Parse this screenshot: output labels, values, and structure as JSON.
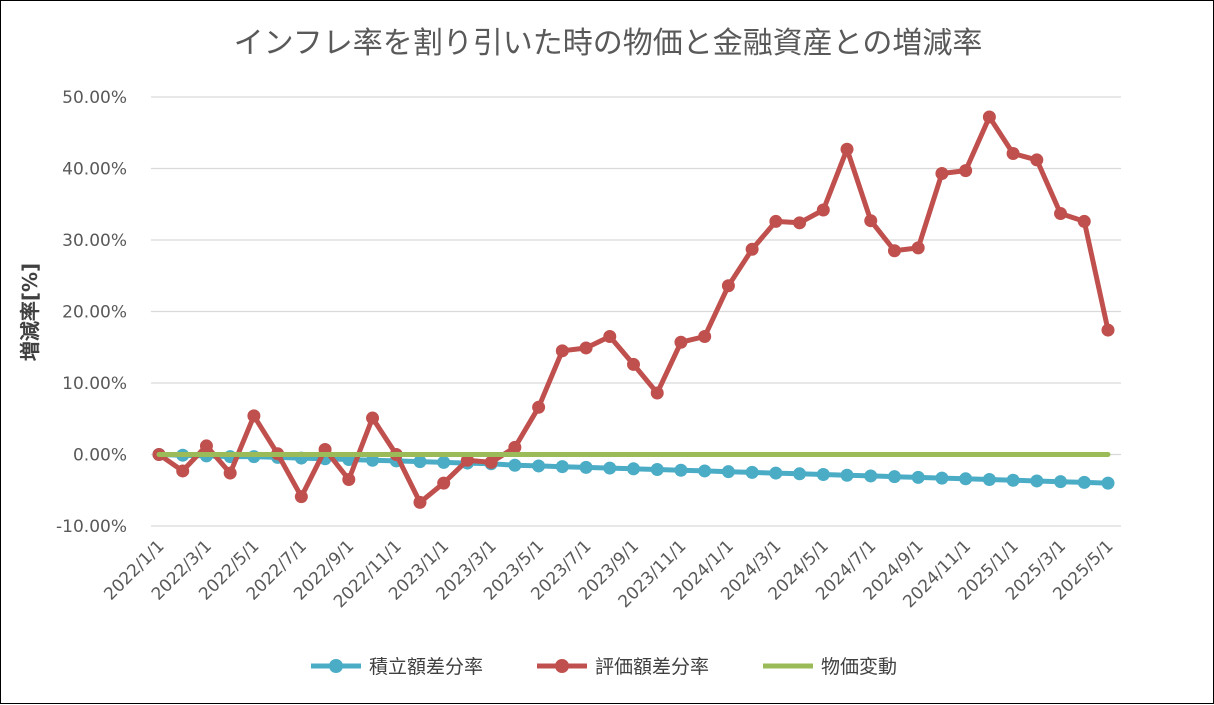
{
  "chart_data": {
    "type": "line",
    "title": "インフレ率を割り引いた時の物価と金融資産との増減率",
    "xlabel": "",
    "ylabel": "増減率[%]",
    "ylim": [
      -0.1,
      0.5
    ],
    "yticks": [
      "-10.00%",
      "0.00%",
      "10.00%",
      "20.00%",
      "30.00%",
      "40.00%",
      "50.00%"
    ],
    "ytick_values": [
      -0.1,
      0.0,
      0.1,
      0.2,
      0.3,
      0.4,
      0.5
    ],
    "grid": true,
    "legend_position": "bottom",
    "x": [
      "2022/1/1",
      "2022/2/1",
      "2022/3/1",
      "2022/4/1",
      "2022/5/1",
      "2022/6/1",
      "2022/7/1",
      "2022/8/1",
      "2022/9/1",
      "2022/10/1",
      "2022/11/1",
      "2022/12/1",
      "2023/1/1",
      "2023/2/1",
      "2023/3/1",
      "2023/4/1",
      "2023/5/1",
      "2023/6/1",
      "2023/7/1",
      "2023/8/1",
      "2023/9/1",
      "2023/10/1",
      "2023/11/1",
      "2023/12/1",
      "2024/1/1",
      "2024/2/1",
      "2024/3/1",
      "2024/4/1",
      "2024/5/1",
      "2024/6/1",
      "2024/7/1",
      "2024/8/1",
      "2024/9/1",
      "2024/10/1",
      "2024/11/1",
      "2024/12/1",
      "2025/1/1",
      "2025/2/1",
      "2025/3/1",
      "2025/4/1",
      "2025/5/1"
    ],
    "x_tick_labels": [
      "2022/1/1",
      "2022/3/1",
      "2022/5/1",
      "2022/7/1",
      "2022/9/1",
      "2022/11/1",
      "2023/1/1",
      "2023/3/1",
      "2023/5/1",
      "2023/7/1",
      "2023/9/1",
      "2023/11/1",
      "2024/1/1",
      "2024/3/1",
      "2024/5/1",
      "2024/7/1",
      "2024/9/1",
      "2024/11/1",
      "2025/1/1",
      "2025/3/1",
      "2025/5/1"
    ],
    "series": [
      {
        "name": "積立額差分率",
        "color": "#4bacc6",
        "markers": true,
        "values": [
          0.0,
          -0.001,
          -0.002,
          -0.003,
          -0.003,
          -0.004,
          -0.005,
          -0.006,
          -0.007,
          -0.008,
          -0.009,
          -0.01,
          -0.011,
          -0.012,
          -0.013,
          -0.015,
          -0.016,
          -0.017,
          -0.018,
          -0.019,
          -0.02,
          -0.021,
          -0.022,
          -0.023,
          -0.024,
          -0.025,
          -0.026,
          -0.027,
          -0.028,
          -0.029,
          -0.03,
          -0.031,
          -0.032,
          -0.033,
          -0.034,
          -0.035,
          -0.036,
          -0.037,
          -0.038,
          -0.039,
          -0.04
        ]
      },
      {
        "name": "評価額差分率",
        "color": "#c0504d",
        "markers": true,
        "values": [
          0.0,
          -0.023,
          0.012,
          -0.026,
          0.054,
          0.001,
          -0.059,
          0.007,
          -0.035,
          0.051,
          0.0,
          -0.067,
          -0.04,
          -0.008,
          -0.011,
          0.01,
          0.066,
          0.145,
          0.149,
          0.165,
          0.126,
          0.086,
          0.157,
          0.165,
          0.236,
          0.287,
          0.326,
          0.324,
          0.342,
          0.427,
          0.327,
          0.285,
          0.289,
          0.393,
          0.397,
          0.472,
          0.421,
          0.412,
          0.337,
          0.326,
          0.174
        ]
      },
      {
        "name": "物価変動",
        "color": "#9bbb59",
        "markers": false,
        "values": [
          0,
          0,
          0,
          0,
          0,
          0,
          0,
          0,
          0,
          0,
          0,
          0,
          0,
          0,
          0,
          0,
          0,
          0,
          0,
          0,
          0,
          0,
          0,
          0,
          0,
          0,
          0,
          0,
          0,
          0,
          0,
          0,
          0,
          0,
          0,
          0,
          0,
          0,
          0,
          0,
          0
        ]
      }
    ]
  }
}
